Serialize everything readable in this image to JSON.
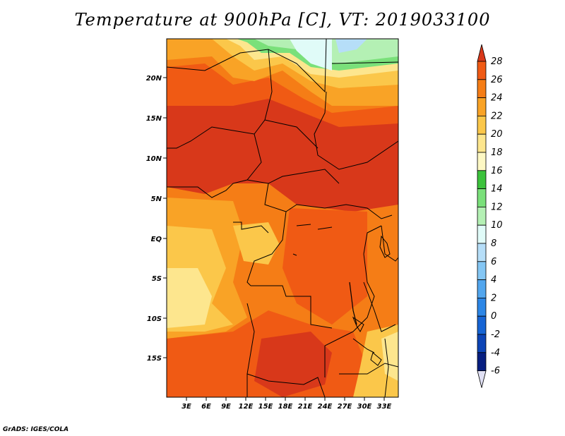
{
  "title": "Temperature at 900hPa [C], VT: 2019033100",
  "credit": "GrADS: IGES/COLA",
  "map": {
    "lat_ticks": [
      "20N",
      "15N",
      "10N",
      "5N",
      "EQ",
      "5S",
      "10S",
      "15S"
    ],
    "lon_ticks": [
      "3E",
      "6E",
      "9E",
      "12E",
      "15E",
      "18E",
      "21E",
      "24E",
      "27E",
      "30E",
      "33E"
    ]
  },
  "colorbar": {
    "levels": [
      "28",
      "26",
      "24",
      "22",
      "20",
      "18",
      "16",
      "14",
      "12",
      "10",
      "8",
      "6",
      "4",
      "2",
      "0",
      "-2",
      "-4",
      "-6"
    ],
    "colors": [
      "#d8381a",
      "#f05a14",
      "#f57d16",
      "#f9a326",
      "#fbc74a",
      "#fde68e",
      "#fdf8c4",
      "#3cc23c",
      "#7ae07a",
      "#b4f0b4",
      "#e0fbf8",
      "#b6def8",
      "#84c6f4",
      "#52a6ee",
      "#2c86e6",
      "#1664d4",
      "#0c44b6",
      "#061e80",
      "#0a0a5a"
    ]
  }
}
